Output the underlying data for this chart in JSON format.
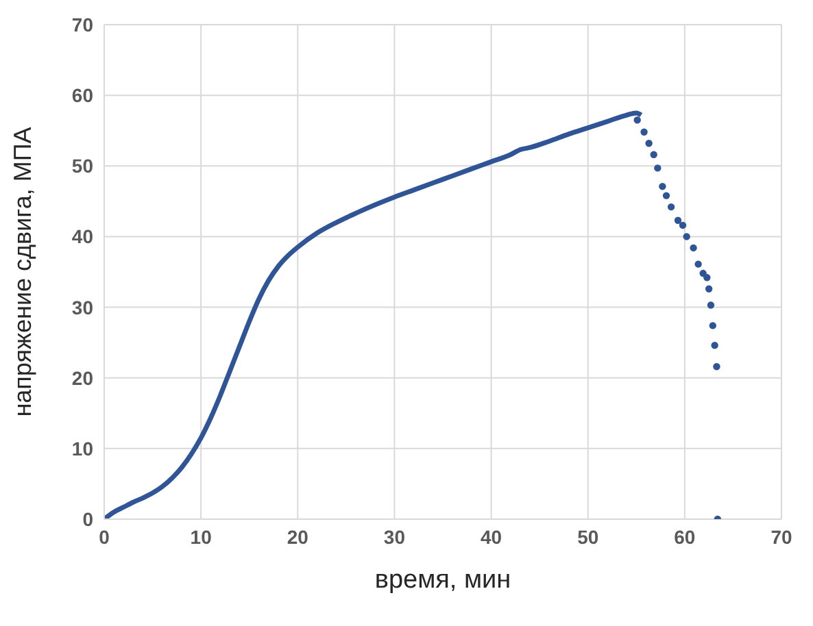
{
  "chart_data": {
    "type": "scatter",
    "xlabel": "время, мин",
    "ylabel": "напряжение сдвига, МПА",
    "xlim": [
      0,
      70
    ],
    "ylim": [
      0,
      70
    ],
    "xticks": [
      0,
      10,
      20,
      30,
      40,
      50,
      60,
      70
    ],
    "yticks": [
      0,
      10,
      20,
      30,
      40,
      50,
      60,
      70
    ],
    "grid": true,
    "series": [
      {
        "type": "line",
        "marker": "none",
        "color": "#2f5597",
        "x": [
          0,
          1,
          2,
          3,
          4,
          5,
          6,
          7,
          8,
          9,
          10,
          11,
          12,
          13,
          14,
          15,
          16,
          17,
          18,
          19,
          20,
          22,
          24,
          26,
          28,
          30,
          32,
          34,
          36,
          38,
          40,
          42,
          43,
          44,
          46,
          48,
          50,
          52,
          54,
          55,
          55.5
        ],
        "values": [
          0,
          1,
          1.7,
          2.4,
          3,
          3.7,
          4.6,
          5.8,
          7.3,
          9.2,
          11.5,
          14.3,
          17.5,
          21,
          24.5,
          28,
          31.2,
          33.8,
          35.8,
          37.3,
          38.5,
          40.5,
          42,
          43.3,
          44.5,
          45.6,
          46.6,
          47.6,
          48.6,
          49.6,
          50.6,
          51.6,
          52.3,
          52.6,
          53.5,
          54.5,
          55.4,
          56.3,
          57.2,
          57.5,
          57.2
        ]
      },
      {
        "marker": "circle",
        "color": "#2f5597",
        "x": [
          55.1,
          55.8,
          56.3,
          56.8,
          57.2,
          57.7,
          58.1,
          58.6,
          59.3,
          59.8,
          60.2,
          60.9,
          61.4,
          61.9,
          62.3,
          62.5,
          62.7,
          62.9,
          63.1,
          63.3,
          63.4
        ],
        "values": [
          56.5,
          54.8,
          53.2,
          51.6,
          49.7,
          47.1,
          45.8,
          44.2,
          42.3,
          41.6,
          40,
          38.4,
          36.1,
          34.8,
          34.2,
          32.6,
          30.3,
          27.4,
          24.6,
          21.6,
          0
        ]
      }
    ]
  }
}
